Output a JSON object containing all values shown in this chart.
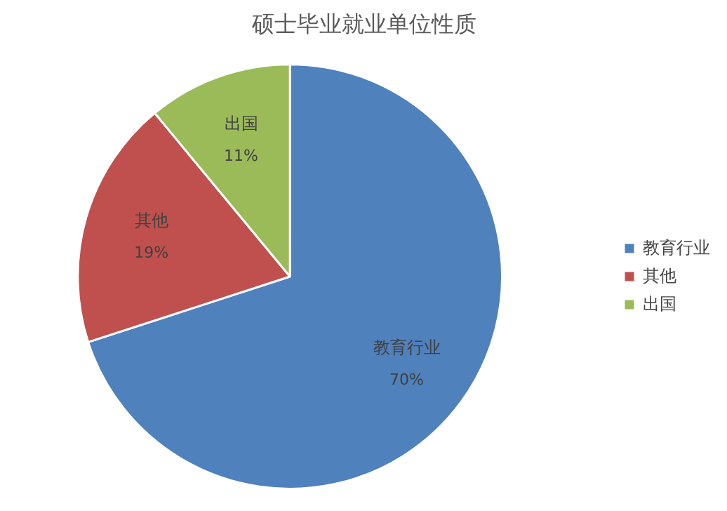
{
  "chart_data": {
    "type": "pie",
    "title": "硕士毕业就业单位性质",
    "categories": [
      "教育行业",
      "其他",
      "出国"
    ],
    "values": [
      70,
      19,
      11
    ],
    "colors": [
      "#4f81bd",
      "#c0504d",
      "#9bbb59"
    ],
    "value_labels": [
      "70%",
      "19%",
      "11%"
    ],
    "legend": "right"
  }
}
